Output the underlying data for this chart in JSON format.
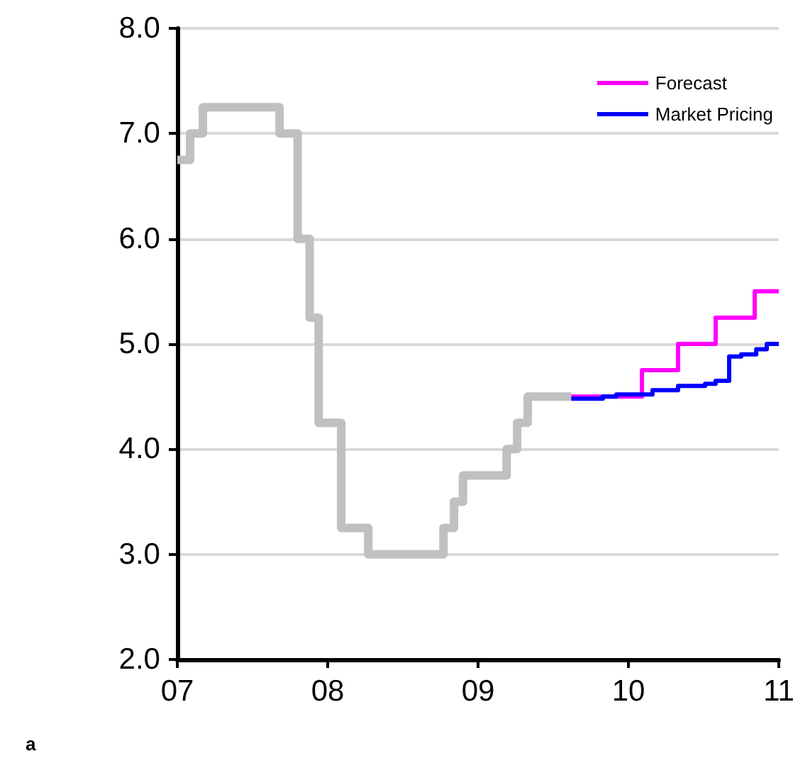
{
  "chart_data": {
    "type": "step",
    "annotations": [
      "a"
    ],
    "xlim": [
      7,
      11
    ],
    "xticks": [
      {
        "value": 7,
        "label": "07"
      },
      {
        "value": 8,
        "label": "08"
      },
      {
        "value": 9,
        "label": "09"
      },
      {
        "value": 10,
        "label": "10"
      },
      {
        "value": 11,
        "label": "11"
      }
    ],
    "ylim": [
      2,
      8
    ],
    "yticks": [
      {
        "value": 2,
        "label": "2.0"
      },
      {
        "value": 3,
        "label": "3.0"
      },
      {
        "value": 4,
        "label": "4.0"
      },
      {
        "value": 5,
        "label": "5.0"
      },
      {
        "value": 6,
        "label": "6.0"
      },
      {
        "value": 7,
        "label": "7.0"
      },
      {
        "value": 8,
        "label": "8.0"
      }
    ],
    "grid": "y",
    "legend": "top right",
    "marker": "none",
    "line_style": "solid",
    "series": [
      {
        "color": "#c0c0c0",
        "x": [
          7.0,
          7.085,
          7.17,
          7.68,
          7.8,
          7.88,
          7.94,
          8.09,
          8.27,
          8.77,
          8.84,
          8.9,
          9.19,
          9.26,
          9.33,
          9.62
        ],
        "values": [
          6.75,
          7.0,
          7.25,
          7.0,
          6.0,
          5.25,
          4.25,
          3.25,
          3.0,
          3.25,
          3.5,
          3.75,
          4.0,
          4.25,
          4.5,
          4.5
        ]
      },
      {
        "name": "Forecast",
        "color": "#ff00ff",
        "x": [
          9.62,
          10.09,
          10.33,
          10.58,
          10.84,
          11.0
        ],
        "values": [
          4.5,
          4.75,
          5.0,
          5.25,
          5.5,
          5.5
        ]
      },
      {
        "name": "Market Pricing",
        "color": "#0000ff",
        "x": [
          9.62,
          9.83,
          9.92,
          10.16,
          10.33,
          10.51,
          10.58,
          10.67,
          10.75,
          10.85,
          10.92,
          11.0
        ],
        "values": [
          4.48,
          4.5,
          4.52,
          4.56,
          4.6,
          4.62,
          4.65,
          4.88,
          4.9,
          4.95,
          5.0,
          5.0
        ]
      }
    ]
  }
}
